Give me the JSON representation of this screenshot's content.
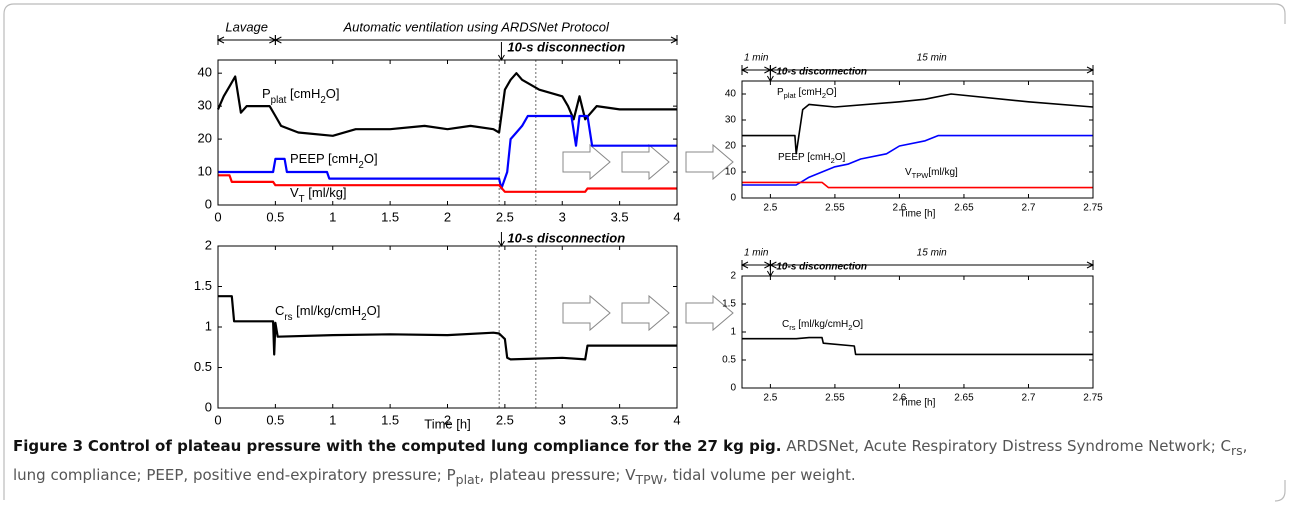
{
  "chart_data": [
    {
      "type": "line",
      "xlim": [
        0,
        4
      ],
      "xticks": [
        0,
        0.5,
        1,
        1.5,
        2,
        2.5,
        3,
        3.5,
        4
      ],
      "ylim": [
        0,
        44
      ],
      "yticks": [
        0,
        10,
        20,
        30,
        40
      ],
      "vlines": [
        2.45,
        2.77
      ],
      "spans": [
        {
          "label": "Lavage",
          "from": 0,
          "to": 0.5
        },
        {
          "label": "Automatic ventilation using ARDSNet Protocol",
          "from": 0.5,
          "to": 4
        }
      ],
      "marker": {
        "label": "10-s disconnection",
        "x": 2.47
      },
      "annotations": [
        {
          "parts": [
            {
              "text": "P"
            },
            {
              "sub": "plat"
            },
            {
              "text": " [cmH"
            },
            {
              "sub": "2"
            },
            {
              "text": "O]"
            }
          ]
        },
        {
          "parts": [
            {
              "text": "PEEP [cmH"
            },
            {
              "sub": "2"
            },
            {
              "text": "O]"
            }
          ]
        },
        {
          "parts": [
            {
              "text": "V"
            },
            {
              "sub": "T"
            },
            {
              "text": " [ml/kg]"
            }
          ]
        }
      ],
      "series": [
        {
          "color": "#000000",
          "x": [
            0,
            0.05,
            0.1,
            0.15,
            0.2,
            0.25,
            0.45,
            0.5,
            0.55,
            0.7,
            1.0,
            1.2,
            1.5,
            1.8,
            2.0,
            2.2,
            2.4,
            2.45,
            2.5,
            2.55,
            2.6,
            2.65,
            2.7,
            2.8,
            3.0,
            3.05,
            3.1,
            3.15,
            3.2,
            3.3,
            3.5,
            3.7,
            4.0
          ],
          "values": [
            29,
            33,
            36,
            39,
            28,
            30,
            30,
            27,
            24,
            22,
            21,
            23,
            23,
            24,
            23,
            24,
            23,
            22,
            35,
            38,
            40,
            38,
            37,
            35,
            33,
            30,
            26,
            33,
            26,
            30,
            29,
            29,
            29
          ]
        },
        {
          "color": "#0000ff",
          "x": [
            0,
            0.48,
            0.5,
            0.58,
            0.6,
            0.95,
            0.97,
            2.45,
            2.47,
            2.52,
            2.55,
            2.6,
            2.65,
            2.7,
            3.08,
            3.12,
            3.15,
            3.22,
            3.26,
            4
          ],
          "values": [
            10,
            10,
            14,
            14,
            10,
            10,
            8,
            8,
            5,
            10,
            20,
            22,
            24,
            27,
            27,
            18,
            27,
            27,
            18,
            18
          ]
        },
        {
          "color": "#ff0000",
          "x": [
            0,
            0.1,
            0.12,
            0.48,
            0.5,
            2.45,
            2.5,
            2.55,
            3.2,
            3.22,
            4
          ],
          "values": [
            9,
            9,
            7,
            7,
            6,
            6,
            4,
            4,
            4,
            5,
            5
          ]
        }
      ]
    },
    {
      "type": "line",
      "xlim": [
        0,
        4
      ],
      "xticks": [
        0,
        0.5,
        1,
        1.5,
        2,
        2.5,
        3,
        3.5,
        4
      ],
      "ylim": [
        0,
        2
      ],
      "yticks": [
        0,
        0.5,
        1,
        1.5,
        2
      ],
      "x_label": "Time [h]",
      "vlines": [
        2.45,
        2.77
      ],
      "marker": {
        "label": "10-s disconnection",
        "x": 2.47
      },
      "annotations": [
        {
          "parts": [
            {
              "text": "C"
            },
            {
              "sub": "rs"
            },
            {
              "text": " [ml/kg/cmH"
            },
            {
              "sub": "2"
            },
            {
              "text": "O]"
            }
          ]
        }
      ],
      "series": [
        {
          "color": "#000000",
          "x": [
            0,
            0.12,
            0.14,
            0.48,
            0.49,
            0.5,
            0.52,
            1.0,
            1.5,
            2.0,
            2.4,
            2.45,
            2.5,
            2.52,
            2.55,
            3.0,
            3.2,
            3.22,
            4
          ],
          "values": [
            1.38,
            1.38,
            1.07,
            1.07,
            0.66,
            1.05,
            0.88,
            0.9,
            0.91,
            0.9,
            0.93,
            0.92,
            0.85,
            0.62,
            0.6,
            0.62,
            0.6,
            0.77,
            0.77
          ]
        }
      ]
    },
    {
      "type": "line",
      "xlim": [
        2.478,
        2.75
      ],
      "xticks": [
        2.5,
        2.55,
        2.6,
        2.65,
        2.7,
        2.75
      ],
      "ylim": [
        0,
        45
      ],
      "yticks": [
        0,
        10,
        20,
        30,
        40
      ],
      "x_label": "Time [h]",
      "spans": [
        {
          "label": "1 min",
          "from": 2.478,
          "to": 2.5
        },
        {
          "label": "15 min",
          "from": 2.5,
          "to": 2.75
        }
      ],
      "marker": {
        "label": "10-s disconnection",
        "x": 2.5
      },
      "annotations": [
        {
          "parts": [
            {
              "text": "P"
            },
            {
              "sub": "plat"
            },
            {
              "text": " [cmH"
            },
            {
              "sub": "2"
            },
            {
              "text": "O]"
            }
          ]
        },
        {
          "parts": [
            {
              "text": "PEEP [cmH"
            },
            {
              "sub": "2"
            },
            {
              "text": "O]"
            }
          ]
        },
        {
          "parts": [
            {
              "text": "V"
            },
            {
              "sub": "TPW"
            },
            {
              "text": "[ml/kg]"
            }
          ]
        }
      ],
      "series": [
        {
          "color": "#000000",
          "x": [
            2.478,
            2.519,
            2.52,
            2.525,
            2.53,
            2.55,
            2.6,
            2.62,
            2.64,
            2.7,
            2.75
          ],
          "values": [
            24,
            24,
            17,
            34,
            36,
            35,
            37,
            38,
            40,
            37,
            35
          ]
        },
        {
          "color": "#0000ff",
          "x": [
            2.478,
            2.52,
            2.53,
            2.54,
            2.55,
            2.56,
            2.57,
            2.59,
            2.6,
            2.62,
            2.63,
            2.64,
            2.75
          ],
          "values": [
            5,
            5,
            8,
            10,
            12,
            13,
            15,
            17,
            20,
            22,
            24,
            24,
            24
          ]
        },
        {
          "color": "#ff0000",
          "x": [
            2.478,
            2.52,
            2.54,
            2.545,
            2.75
          ],
          "values": [
            6,
            6,
            6,
            4,
            4
          ]
        }
      ]
    },
    {
      "type": "line",
      "xlim": [
        2.478,
        2.75
      ],
      "xticks": [
        2.5,
        2.55,
        2.6,
        2.65,
        2.7,
        2.75
      ],
      "ylim": [
        0,
        2
      ],
      "yticks": [
        0,
        0.5,
        1,
        1.5,
        2
      ],
      "x_label": "Time [h]",
      "spans": [
        {
          "label": "1 min",
          "from": 2.478,
          "to": 2.5
        },
        {
          "label": "15 min",
          "from": 2.5,
          "to": 2.75
        }
      ],
      "marker": {
        "label": "10-s disconnection",
        "x": 2.5
      },
      "annotations": [
        {
          "parts": [
            {
              "text": "C"
            },
            {
              "sub": "rs"
            },
            {
              "text": " [ml/kg/cmH"
            },
            {
              "sub": "2"
            },
            {
              "text": "O]"
            }
          ]
        }
      ],
      "series": [
        {
          "color": "#000000",
          "x": [
            2.478,
            2.52,
            2.53,
            2.54,
            2.541,
            2.565,
            2.566,
            2.75
          ],
          "values": [
            0.88,
            0.88,
            0.9,
            0.9,
            0.8,
            0.75,
            0.6,
            0.6
          ]
        }
      ]
    }
  ],
  "caption": {
    "label": "Figure 3",
    "title": "Control of plateau pressure with the computed lung compliance for the 27 kg pig.",
    "parts": [
      {
        "text": " ARDSNet, Acute Respiratory Distress Syndrome Network; C"
      },
      {
        "sub": "rs"
      },
      {
        "text": ", lung compliance; PEEP, positive end-expiratory pressure; P"
      },
      {
        "sub": "plat"
      },
      {
        "text": ", plateau pressure; V"
      },
      {
        "sub": "TPW"
      },
      {
        "text": ", tidal volume per weight."
      }
    ]
  }
}
